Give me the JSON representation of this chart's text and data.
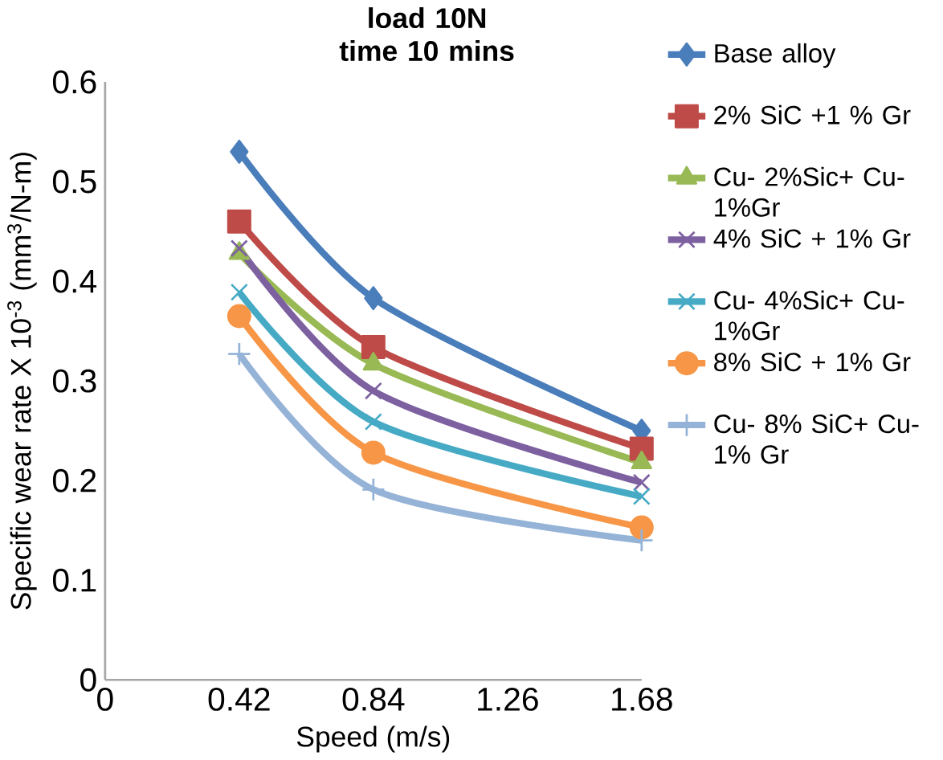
{
  "chart_data": {
    "type": "line",
    "title": "load 10N time 10 mins",
    "xlabel": "Speed (m/s)",
    "ylabel": "Specific wear rate X 10$^{-3}$ (mm$^{3}$/N-m)",
    "x": [
      0.42,
      0.84,
      1.68
    ],
    "xlim": [
      0,
      1.68
    ],
    "xticks": [
      0,
      0.42,
      0.84,
      1.26,
      1.68
    ],
    "ylim": [
      0,
      0.6
    ],
    "yticks": [
      0,
      0.1,
      0.2,
      0.3,
      0.4,
      0.5,
      0.6
    ],
    "grid": false,
    "legend": "right",
    "series": [
      {
        "name": "Base alloy",
        "color": "#4a7ebb",
        "marker": "diamond",
        "values": [
          0.53,
          0.383,
          0.25
        ]
      },
      {
        "name": "2% SiC +1 % Gr",
        "color": "#be4b48",
        "marker": "square",
        "values": [
          0.46,
          0.334,
          0.232
        ]
      },
      {
        "name": "Cu- 2%Sic+ Cu-1%Gr",
        "color": "#98b954",
        "marker": "triangle",
        "values": [
          0.428,
          0.317,
          0.218
        ]
      },
      {
        "name": "4% SiC + 1% Gr",
        "color": "#7d60a0",
        "marker": "cross",
        "values": [
          0.433,
          0.29,
          0.198
        ]
      },
      {
        "name": "Cu- 4%Sic+ Cu-1%Gr",
        "color": "#46aac5",
        "marker": "cross",
        "values": [
          0.389,
          0.259,
          0.184
        ]
      },
      {
        "name": "8% SiC + 1% Gr",
        "color": "#f79646",
        "marker": "circle",
        "values": [
          0.365,
          0.228,
          0.153
        ]
      },
      {
        "name": "Cu- 8% SiC+ Cu-1% Gr",
        "color": "#95b3d7",
        "marker": "plus",
        "values": [
          0.327,
          0.191,
          0.14
        ]
      }
    ]
  }
}
